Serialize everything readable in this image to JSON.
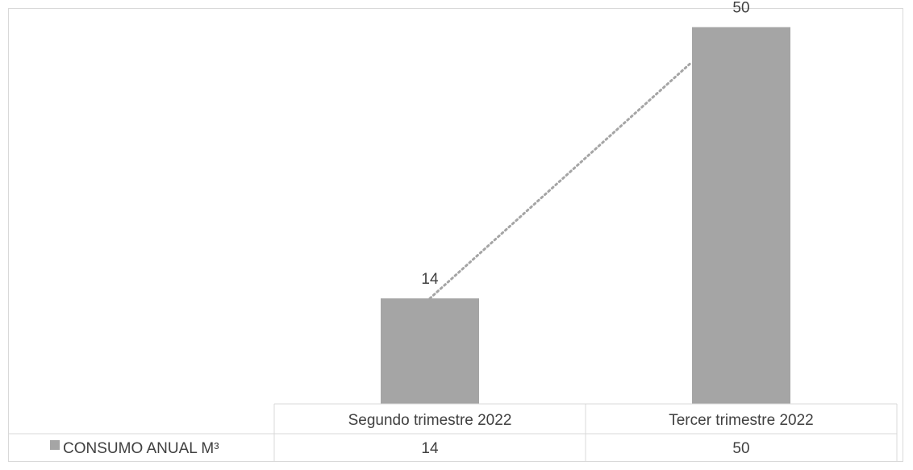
{
  "chart_data": {
    "type": "bar",
    "categories": [
      "Segundo trimestre 2022",
      "Tercer trimestre 2022"
    ],
    "series": [
      {
        "name": "CONSUMO ANUAL M³",
        "values": [
          14,
          50
        ],
        "color": "#a5a5a5"
      }
    ],
    "data_labels": [
      "14",
      "50"
    ],
    "trendline": {
      "style": "dotted",
      "color": "#a5a5a5"
    },
    "data_table": {
      "row_label": "CONSUMO ANUAL M³",
      "values": [
        "14",
        "50"
      ]
    },
    "ylim": [
      0,
      52
    ],
    "grid": false,
    "legend": "in data table"
  }
}
